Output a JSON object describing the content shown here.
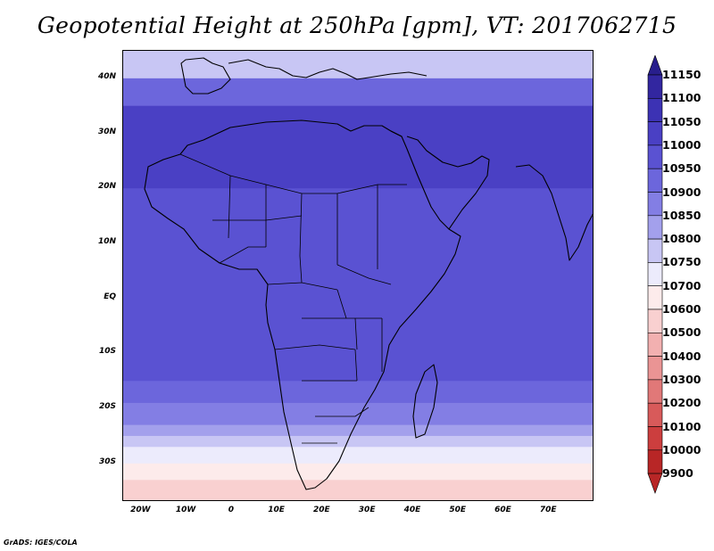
{
  "title": "Geopotential Height at 250hPa [gpm], VT: 2017062715",
  "credit": "GrADS: IGES/COLA",
  "map": {
    "projection": "latlon",
    "lon_range": [
      -24,
      80
    ],
    "lat_range": [
      -37,
      45
    ],
    "lat_ticks": [
      {
        "value": 40,
        "label": "40N"
      },
      {
        "value": 30,
        "label": "30N"
      },
      {
        "value": 20,
        "label": "20N"
      },
      {
        "value": 10,
        "label": "10N"
      },
      {
        "value": 0,
        "label": "EQ"
      },
      {
        "value": -10,
        "label": "10S"
      },
      {
        "value": -20,
        "label": "20S"
      },
      {
        "value": -30,
        "label": "30S"
      }
    ],
    "lon_ticks": [
      {
        "value": -20,
        "label": "20W"
      },
      {
        "value": -10,
        "label": "10W"
      },
      {
        "value": 0,
        "label": "0"
      },
      {
        "value": 10,
        "label": "10E"
      },
      {
        "value": 20,
        "label": "20E"
      },
      {
        "value": 30,
        "label": "30E"
      },
      {
        "value": 40,
        "label": "40E"
      },
      {
        "value": 50,
        "label": "50E"
      },
      {
        "value": 60,
        "label": "60E"
      },
      {
        "value": 70,
        "label": "70E"
      }
    ],
    "field_bands_by_latitude": [
      {
        "lat_from": 45,
        "lat_to": 40,
        "value": 10750
      },
      {
        "lat_from": 40,
        "lat_to": 35,
        "value": 10900
      },
      {
        "lat_from": 35,
        "lat_to": 20,
        "value": 11000
      },
      {
        "lat_from": 20,
        "lat_to": 10,
        "value": 10950
      },
      {
        "lat_from": 10,
        "lat_to": -15,
        "value": 10950
      },
      {
        "lat_from": -15,
        "lat_to": -19,
        "value": 10900
      },
      {
        "lat_from": -19,
        "lat_to": -23,
        "value": 10850
      },
      {
        "lat_from": -23,
        "lat_to": -25,
        "value": 10800
      },
      {
        "lat_from": -25,
        "lat_to": -27,
        "value": 10750
      },
      {
        "lat_from": -27,
        "lat_to": -30,
        "value": 10700
      },
      {
        "lat_from": -30,
        "lat_to": -33,
        "value": 10600
      },
      {
        "lat_from": -33,
        "lat_to": -37,
        "value": 10500
      }
    ]
  },
  "colorbar": {
    "levels": [
      {
        "label": "11150",
        "color": "#281e8c"
      },
      {
        "label": "11100",
        "color": "#3226a0"
      },
      {
        "label": "11050",
        "color": "#3c32b4"
      },
      {
        "label": "11000",
        "color": "#4a40c4"
      },
      {
        "label": "10950",
        "color": "#5a52d2"
      },
      {
        "label": "10900",
        "color": "#6c66dc"
      },
      {
        "label": "10850",
        "color": "#837ee4"
      },
      {
        "label": "10800",
        "color": "#a3a0ec"
      },
      {
        "label": "10750",
        "color": "#c8c6f4"
      },
      {
        "label": "10700",
        "color": "#ecebfc"
      },
      {
        "label": "10600",
        "color": "#fdebeb"
      },
      {
        "label": "10500",
        "color": "#f9d0d0"
      },
      {
        "label": "10400",
        "color": "#f2b0b0"
      },
      {
        "label": "10300",
        "color": "#ea9494"
      },
      {
        "label": "10200",
        "color": "#e17878"
      },
      {
        "label": "10100",
        "color": "#d85a5a"
      },
      {
        "label": "10000",
        "color": "#cc3e3e"
      },
      {
        "label": "9900",
        "color": "#b82626"
      }
    ]
  }
}
